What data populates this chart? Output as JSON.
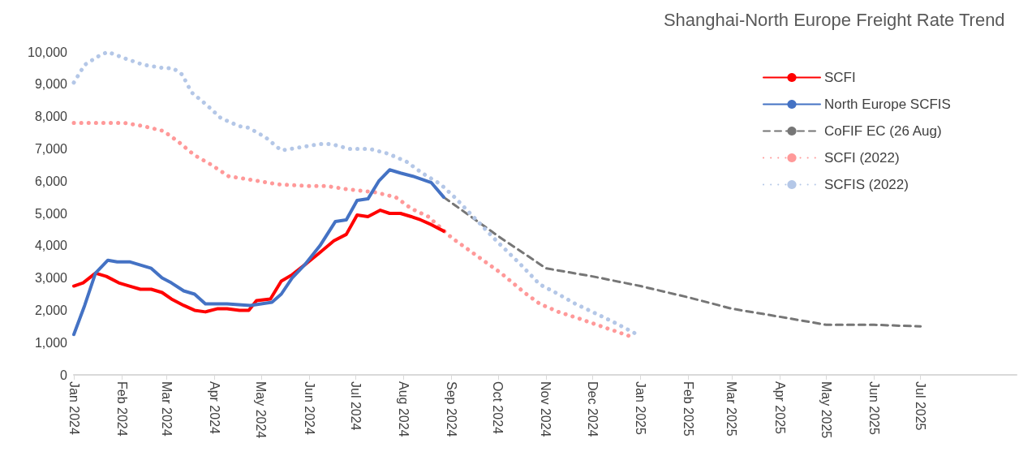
{
  "chart_data": {
    "type": "line",
    "title": "Shanghai-North Europe Freight Rate Trend",
    "xlim": [
      "2024-01-01",
      "2025-09-01"
    ],
    "xticks": [
      {
        "value": "2024-01-01",
        "label": "Jan 2024"
      },
      {
        "value": "2024-02-01",
        "label": "Feb 2024"
      },
      {
        "value": "2024-03-01",
        "label": "Mar 2024"
      },
      {
        "value": "2024-04-01",
        "label": "Apr 2024"
      },
      {
        "value": "2024-05-01",
        "label": "May 2024"
      },
      {
        "value": "2024-06-01",
        "label": "Jun 2024"
      },
      {
        "value": "2024-07-01",
        "label": "Jul 2024"
      },
      {
        "value": "2024-08-01",
        "label": "Aug 2024"
      },
      {
        "value": "2024-09-01",
        "label": "Sep 2024"
      },
      {
        "value": "2024-10-01",
        "label": "Oct 2024"
      },
      {
        "value": "2024-11-01",
        "label": "Nov 2024"
      },
      {
        "value": "2024-12-01",
        "label": "Dec 2024"
      },
      {
        "value": "2025-01-01",
        "label": "Jan 2025"
      },
      {
        "value": "2025-02-01",
        "label": "Feb 2025"
      },
      {
        "value": "2025-03-01",
        "label": "Mar 2025"
      },
      {
        "value": "2025-04-01",
        "label": "Apr 2025"
      },
      {
        "value": "2025-05-01",
        "label": "May 2025"
      },
      {
        "value": "2025-06-01",
        "label": "Jun 2025"
      },
      {
        "value": "2025-07-01",
        "label": "Jul 2025"
      }
    ],
    "ylim": [
      0,
      10000
    ],
    "yticks": [
      {
        "value": 0,
        "label": "0"
      },
      {
        "value": 1000,
        "label": "1,000"
      },
      {
        "value": 2000,
        "label": "2,000"
      },
      {
        "value": 3000,
        "label": "3,000"
      },
      {
        "value": 4000,
        "label": "4,000"
      },
      {
        "value": 5000,
        "label": "5,000"
      },
      {
        "value": 6000,
        "label": "6,000"
      },
      {
        "value": 7000,
        "label": "7,000"
      },
      {
        "value": 8000,
        "label": "8,000"
      },
      {
        "value": 9000,
        "label": "9,000"
      },
      {
        "value": 10000,
        "label": "10,000"
      }
    ],
    "grid": false,
    "legend": "top right",
    "marker": "none",
    "series": [
      {
        "name": "SCFI",
        "color": "#ff0000",
        "line_style": "solid",
        "x": [
          "2024-01-01",
          "2024-01-07",
          "2024-01-15",
          "2024-01-22",
          "2024-01-30",
          "2024-02-06",
          "2024-02-13",
          "2024-02-20",
          "2024-02-27",
          "2024-03-04",
          "2024-03-12",
          "2024-03-19",
          "2024-03-26",
          "2024-04-03",
          "2024-04-09",
          "2024-04-17",
          "2024-04-23",
          "2024-04-28",
          "2024-05-07",
          "2024-05-14",
          "2024-05-21",
          "2024-05-29",
          "2024-06-07",
          "2024-06-17",
          "2024-06-25",
          "2024-07-02",
          "2024-07-09",
          "2024-07-17",
          "2024-07-23",
          "2024-07-30",
          "2024-08-06",
          "2024-08-12",
          "2024-08-19",
          "2024-08-27"
        ],
        "values": [
          2750,
          2850,
          3150,
          3050,
          2850,
          2750,
          2650,
          2650,
          2550,
          2350,
          2150,
          2000,
          1950,
          2050,
          2050,
          2000,
          2000,
          2300,
          2350,
          2900,
          3100,
          3400,
          3750,
          4150,
          4350,
          4950,
          4900,
          5100,
          5000,
          5000,
          4900,
          4800,
          4650,
          4450
        ]
      },
      {
        "name": "North Europe SCFIS",
        "color": "#4472c4",
        "line_style": "solid",
        "x": [
          "2024-01-01",
          "2024-01-08",
          "2024-01-15",
          "2024-01-23",
          "2024-01-29",
          "2024-02-06",
          "2024-02-13",
          "2024-02-20",
          "2024-02-27",
          "2024-03-04",
          "2024-03-12",
          "2024-03-19",
          "2024-03-26",
          "2024-04-09",
          "2024-04-24",
          "2024-05-08",
          "2024-05-14",
          "2024-05-21",
          "2024-05-29",
          "2024-06-08",
          "2024-06-18",
          "2024-06-25",
          "2024-07-02",
          "2024-07-09",
          "2024-07-16",
          "2024-07-23",
          "2024-07-30",
          "2024-08-07",
          "2024-08-13",
          "2024-08-19",
          "2024-08-27"
        ],
        "values": [
          1250,
          2150,
          3150,
          3550,
          3500,
          3500,
          3400,
          3300,
          3000,
          2850,
          2600,
          2500,
          2200,
          2200,
          2150,
          2250,
          2500,
          3000,
          3400,
          4000,
          4750,
          4800,
          5400,
          5450,
          6000,
          6350,
          6250,
          6150,
          6050,
          5950,
          5500
        ]
      },
      {
        "name": "CoFIF EC (26 Aug)",
        "color": "#767676",
        "line_style": "dashed",
        "x": [
          "2024-08-27",
          "2024-10-01",
          "2024-11-01",
          "2024-12-01",
          "2025-01-01",
          "2025-02-01",
          "2025-03-01",
          "2025-04-01",
          "2025-05-01",
          "2025-06-01",
          "2025-07-01"
        ],
        "values": [
          5500,
          4300,
          3300,
          3050,
          2750,
          2400,
          2050,
          1800,
          1550,
          1550,
          1500
        ]
      },
      {
        "name": "SCFI (2022)",
        "color": "#ff9999",
        "line_style": "dotted",
        "x": [
          "2024-01-01",
          "2024-01-14",
          "2024-02-03",
          "2024-02-15",
          "2024-02-28",
          "2024-03-09",
          "2024-03-19",
          "2024-03-30",
          "2024-04-10",
          "2024-04-23",
          "2024-05-12",
          "2024-05-31",
          "2024-06-12",
          "2024-06-25",
          "2024-07-14",
          "2024-07-27",
          "2024-08-06",
          "2024-08-17",
          "2024-09-01",
          "2024-09-17",
          "2024-10-03",
          "2024-10-18",
          "2024-10-28",
          "2024-11-09",
          "2024-11-22",
          "2024-12-04",
          "2024-12-16",
          "2024-12-28"
        ],
        "values": [
          7800,
          7800,
          7800,
          7700,
          7550,
          7200,
          6800,
          6500,
          6150,
          6050,
          5900,
          5850,
          5850,
          5750,
          5650,
          5500,
          5150,
          4900,
          4250,
          3700,
          3150,
          2550,
          2200,
          1950,
          1750,
          1550,
          1350,
          1150
        ]
      },
      {
        "name": "SCFIS (2022)",
        "color": "#b4c7e7",
        "line_style": "dotted",
        "x": [
          "2024-01-01",
          "2024-01-08",
          "2024-01-18",
          "2024-01-23",
          "2024-02-03",
          "2024-02-15",
          "2024-02-28",
          "2024-03-05",
          "2024-03-11",
          "2024-03-17",
          "2024-03-27",
          "2024-04-05",
          "2024-04-17",
          "2024-04-23",
          "2024-05-04",
          "2024-05-14",
          "2024-05-27",
          "2024-06-08",
          "2024-06-15",
          "2024-06-27",
          "2024-07-10",
          "2024-07-22",
          "2024-08-03",
          "2024-08-13",
          "2024-08-25",
          "2024-09-03",
          "2024-09-17",
          "2024-09-30",
          "2024-10-15",
          "2024-10-28",
          "2024-11-09",
          "2024-11-20",
          "2024-12-01",
          "2024-12-14",
          "2024-12-30"
        ],
        "values": [
          9050,
          9600,
          9900,
          10000,
          9800,
          9600,
          9500,
          9500,
          9300,
          8750,
          8350,
          7950,
          7700,
          7650,
          7350,
          6950,
          7050,
          7150,
          7150,
          7000,
          7000,
          6850,
          6600,
          6250,
          5900,
          5500,
          4800,
          4150,
          3450,
          2800,
          2500,
          2200,
          1950,
          1650,
          1250
        ]
      }
    ]
  }
}
